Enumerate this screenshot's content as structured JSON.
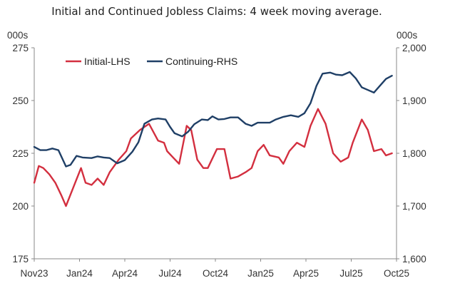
{
  "chart_data": {
    "type": "line",
    "title": "Initial and Continued Jobless Claims: 4 week moving average.",
    "left_axis": {
      "unit": "000s",
      "ylim": [
        175,
        275
      ],
      "ticks": [
        "175",
        "200",
        "225",
        "250",
        "275"
      ]
    },
    "right_axis": {
      "unit": "000s",
      "ylim": [
        1600,
        2000
      ],
      "ticks": [
        "1,600",
        "1,700",
        "1,800",
        "1,900",
        "2,000"
      ]
    },
    "x_tick_labels": [
      "Nov23",
      "Jan24",
      "Apr24",
      "Jul24",
      "Oct24",
      "Jan25",
      "Apr25",
      "Jul25",
      "Oct25"
    ],
    "x_range": [
      0,
      24
    ],
    "legend_position": "top-left",
    "series": [
      {
        "name": "Initial-LHS",
        "axis": "left",
        "color": "#d32f3f",
        "x": [
          0,
          0.3,
          0.6,
          1.0,
          1.4,
          1.8,
          2.1,
          2.6,
          3.1,
          3.4,
          3.8,
          4.2,
          4.6,
          5.0,
          5.6,
          6.1,
          6.4,
          7.0,
          7.6,
          8.2,
          8.6,
          8.8,
          9.2,
          9.6,
          10.1,
          10.4,
          10.8,
          11.2,
          11.5,
          12.1,
          12.6,
          13.0,
          13.5,
          14.0,
          14.4,
          14.8,
          15.2,
          15.6,
          16.2,
          16.5,
          16.9,
          17.4,
          17.9,
          18.3,
          18.8,
          19.3,
          19.8,
          20.3,
          20.8,
          21.1,
          21.7,
          22.1,
          22.5,
          23.0,
          23.3,
          23.7
        ],
        "values": [
          211,
          219,
          218,
          215,
          211,
          205,
          200,
          209,
          218,
          211,
          210,
          213,
          210,
          216,
          222,
          226,
          232,
          236,
          239,
          231,
          230,
          226,
          223,
          220,
          238,
          236,
          222,
          218,
          218,
          227,
          227,
          213,
          214,
          216,
          218,
          226,
          229,
          224,
          223,
          220,
          226,
          230,
          228,
          238,
          246,
          239,
          225,
          221,
          223,
          230,
          241,
          236,
          226,
          227,
          224,
          225
        ]
      },
      {
        "name": "Continuing-RHS",
        "axis": "right",
        "color": "#1f3f66",
        "x": [
          0,
          0.4,
          0.8,
          1.2,
          1.6,
          2.1,
          2.4,
          2.8,
          3.2,
          3.8,
          4.2,
          4.6,
          5.0,
          5.5,
          6.0,
          6.5,
          6.9,
          7.3,
          7.8,
          8.2,
          8.7,
          9.0,
          9.3,
          9.8,
          10.2,
          10.6,
          11.1,
          11.5,
          11.8,
          12.2,
          12.6,
          13.0,
          13.5,
          14.0,
          14.4,
          14.8,
          15.2,
          15.6,
          16.0,
          16.5,
          17.0,
          17.5,
          17.9,
          18.3,
          18.7,
          19.1,
          19.6,
          20.0,
          20.4,
          20.9,
          21.3,
          21.7,
          22.1,
          22.5,
          22.9,
          23.3,
          23.7
        ],
        "values": [
          1812,
          1806,
          1806,
          1809,
          1806,
          1775,
          1778,
          1795,
          1792,
          1791,
          1794,
          1792,
          1791,
          1781,
          1787,
          1803,
          1821,
          1856,
          1864,
          1866,
          1864,
          1850,
          1838,
          1832,
          1841,
          1855,
          1864,
          1863,
          1870,
          1864,
          1865,
          1868,
          1868,
          1856,
          1852,
          1858,
          1858,
          1858,
          1864,
          1869,
          1872,
          1869,
          1876,
          1895,
          1928,
          1951,
          1953,
          1949,
          1948,
          1954,
          1942,
          1925,
          1920,
          1915,
          1928,
          1941,
          1947
        ]
      }
    ]
  }
}
